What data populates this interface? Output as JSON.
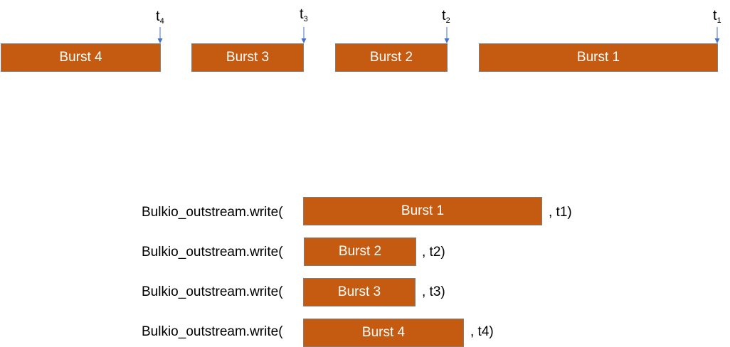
{
  "timeline": {
    "bursts": [
      {
        "label": "Burst 4"
      },
      {
        "label": "Burst 3"
      },
      {
        "label": "Burst 2"
      },
      {
        "label": "Burst 1"
      }
    ],
    "time_markers": [
      {
        "base": "t",
        "sub": "4"
      },
      {
        "base": "t",
        "sub": "3"
      },
      {
        "base": "t",
        "sub": "2"
      },
      {
        "base": "t",
        "sub": "1"
      }
    ],
    "marker_color": "#4472c4"
  },
  "writes": [
    {
      "call": "Bulkio_outstream.write(",
      "burst": "Burst 1",
      "arg": ", t1)"
    },
    {
      "call": "Bulkio_outstream.write(",
      "burst": "Burst 2",
      "arg": ", t2)"
    },
    {
      "call": "Bulkio_outstream.write(",
      "burst": "Burst 3",
      "arg": ", t3)"
    },
    {
      "call": "Bulkio_outstream.write(",
      "burst": "Burst 4",
      "arg": ", t4)"
    }
  ],
  "colors": {
    "burst_fill": "#c55a11",
    "burst_text": "#ffffff"
  }
}
